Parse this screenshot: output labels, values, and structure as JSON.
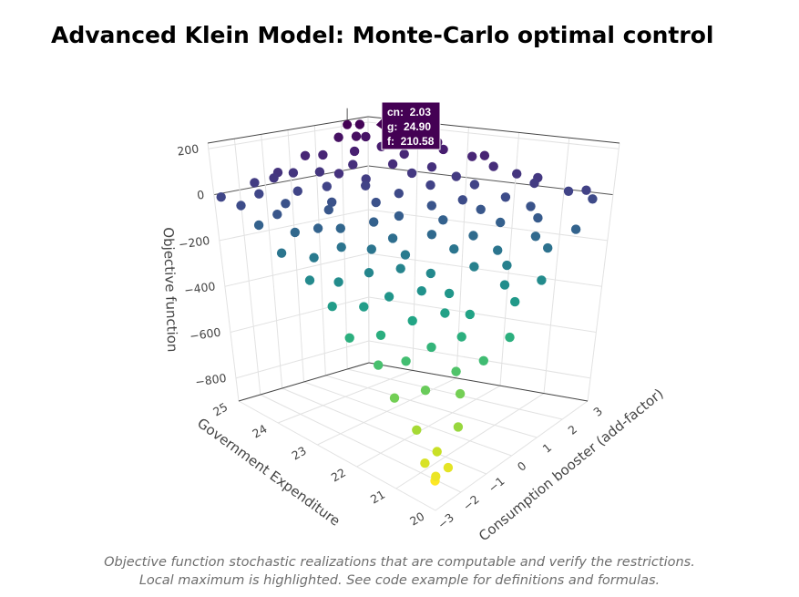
{
  "title": "Advanced Klein Model: Monte-Carlo optimal control",
  "caption": {
    "line1": "Objective function stochastic realizations that are computable and verify the restrictions.",
    "line2": "Local maximum is highlighted. See code example for definitions and formulas."
  },
  "chart_data": {
    "type": "scatter3d",
    "title": "Advanced Klein Model: Monte-Carlo optimal control",
    "axes": {
      "x": {
        "label": "Government Expenditure",
        "range": [
          20,
          25
        ],
        "ticks": [
          20,
          21,
          22,
          23,
          24,
          25
        ],
        "key": "g"
      },
      "y": {
        "label": "Consumption booster (add-factor)",
        "range": [
          -3,
          3
        ],
        "ticks": [
          -3,
          -2,
          -1,
          0,
          1,
          2,
          3
        ],
        "key": "cn"
      },
      "z": {
        "label": "Objective function",
        "range": [
          -900,
          225
        ],
        "ticks": [
          -800,
          -600,
          -400,
          -200,
          0,
          200
        ],
        "key": "f"
      }
    },
    "colorscale": "viridis",
    "colorscale_reversed": true,
    "grid": true,
    "highlight": {
      "g": 24.9,
      "cn": 2.03,
      "f": 210.58,
      "tooltip": [
        "cn:  2.03",
        "g:  24.90",
        "f:  210.58"
      ],
      "color": "#440154"
    },
    "points_columns": [
      "g",
      "cn",
      "f"
    ],
    "points": [
      [
        24.9,
        2.5,
        202
      ],
      [
        24.65,
        2.25,
        158
      ],
      [
        24.85,
        1.6,
        163
      ],
      [
        24.75,
        0.8,
        104
      ],
      [
        24.95,
        0.5,
        101
      ],
      [
        24.7,
        -0.45,
        52
      ],
      [
        24.8,
        -0.85,
        59
      ],
      [
        24.92,
        -1.55,
        25
      ],
      [
        24.68,
        -1.85,
        -9
      ],
      [
        24.88,
        -2.95,
        -7
      ],
      [
        24.35,
        2.8,
        171
      ],
      [
        24.2,
        2.0,
        130
      ],
      [
        24.4,
        1.35,
        118
      ],
      [
        24.25,
        1.0,
        70
      ],
      [
        24.45,
        0.1,
        52
      ],
      [
        24.15,
        -0.2,
        4
      ],
      [
        24.3,
        -1.05,
        -2
      ],
      [
        24.38,
        -1.4,
        -50
      ],
      [
        24.1,
        -2.25,
        -66
      ],
      [
        24.32,
        -2.6,
        -112
      ],
      [
        23.75,
        2.55,
        150
      ],
      [
        23.9,
        2.3,
        98
      ],
      [
        23.65,
        1.4,
        80
      ],
      [
        23.85,
        0.75,
        24
      ],
      [
        23.7,
        0.45,
        6
      ],
      [
        23.95,
        -0.4,
        -52
      ],
      [
        23.8,
        -0.8,
        -70
      ],
      [
        23.6,
        -1.6,
        -120
      ],
      [
        23.88,
        -2.0,
        -138
      ],
      [
        23.72,
        -2.85,
        -195
      ],
      [
        23.3,
        2.65,
        126
      ],
      [
        23.15,
        1.95,
        68
      ],
      [
        23.42,
        1.7,
        40
      ],
      [
        23.2,
        0.8,
        -20
      ],
      [
        23.35,
        0.2,
        -48
      ],
      [
        23.1,
        -0.35,
        -108
      ],
      [
        23.45,
        -1.0,
        -130
      ],
      [
        23.25,
        -1.35,
        -190
      ],
      [
        23.38,
        -2.2,
        -215
      ],
      [
        23.18,
        -2.75,
        -280
      ],
      [
        22.85,
        2.9,
        100
      ],
      [
        22.7,
        2.05,
        36
      ],
      [
        22.9,
        1.45,
        8
      ],
      [
        22.65,
        1.05,
        -62
      ],
      [
        22.95,
        0.35,
        -96
      ],
      [
        22.75,
        -0.25,
        -165
      ],
      [
        22.82,
        -0.95,
        -192
      ],
      [
        22.6,
        -1.45,
        -262
      ],
      [
        22.88,
        -2.15,
        -290
      ],
      [
        22.72,
        -2.7,
        -360
      ],
      [
        22.25,
        2.6,
        78
      ],
      [
        22.4,
        2.2,
        5
      ],
      [
        22.15,
        1.3,
        -30
      ],
      [
        22.35,
        0.95,
        -110
      ],
      [
        22.2,
        0.25,
        -145
      ],
      [
        22.45,
        -0.3,
        -220
      ],
      [
        22.3,
        -0.75,
        -255
      ],
      [
        22.1,
        -1.55,
        -330
      ],
      [
        22.38,
        -2.05,
        -365
      ],
      [
        22.22,
        -2.9,
        -445
      ],
      [
        21.85,
        2.75,
        52
      ],
      [
        21.7,
        2.1,
        -28
      ],
      [
        21.9,
        1.55,
        -70
      ],
      [
        21.65,
        0.85,
        -150
      ],
      [
        21.8,
        0.4,
        -195
      ],
      [
        21.95,
        -0.2,
        -278
      ],
      [
        21.75,
        -0.9,
        -315
      ],
      [
        21.6,
        -1.5,
        -400
      ],
      [
        21.88,
        -2.25,
        -440
      ],
      [
        21.7,
        -2.65,
        -525
      ],
      [
        21.35,
        2.5,
        30
      ],
      [
        21.2,
        2.15,
        -55
      ],
      [
        21.4,
        1.4,
        -105
      ],
      [
        21.15,
        0.9,
        -195
      ],
      [
        21.3,
        0.3,
        -245
      ],
      [
        21.45,
        -0.35,
        -332
      ],
      [
        21.25,
        -0.85,
        -380
      ],
      [
        21.1,
        -1.6,
        -470
      ],
      [
        21.38,
        -2.1,
        -515
      ],
      [
        21.22,
        -2.8,
        -608
      ],
      [
        20.75,
        2.7,
        5
      ],
      [
        20.9,
        1.9,
        -88
      ],
      [
        20.7,
        1.5,
        -145
      ],
      [
        20.85,
        0.75,
        -240
      ],
      [
        20.65,
        0.35,
        -295
      ],
      [
        20.95,
        -0.4,
        -390
      ],
      [
        20.8,
        -0.95,
        -445
      ],
      [
        20.6,
        -1.45,
        -540
      ],
      [
        20.88,
        -2.15,
        -590
      ],
      [
        20.7,
        -2.75,
        -690
      ],
      [
        20.3,
        2.8,
        -20
      ],
      [
        20.15,
        2.0,
        -118
      ],
      [
        20.4,
        1.45,
        -182
      ],
      [
        20.2,
        0.95,
        -285
      ],
      [
        20.35,
        0.25,
        -345
      ],
      [
        20.1,
        -0.3,
        -445
      ],
      [
        20.25,
        -1.0,
        -505
      ],
      [
        20.45,
        -1.5,
        -610
      ],
      [
        20.05,
        -2.2,
        -668
      ],
      [
        20.28,
        -2.6,
        -745
      ],
      [
        20.1,
        -2.9,
        -800
      ],
      [
        20.2,
        -2.75,
        -830
      ],
      [
        20.05,
        -2.5,
        -790
      ],
      [
        20.35,
        -2.95,
        -770
      ],
      [
        24.6,
        1.8,
        170
      ],
      [
        24.0,
        0.0,
        60
      ],
      [
        23.5,
        2.8,
        150
      ],
      [
        22.6,
        2.9,
        110
      ],
      [
        24.7,
        -1.2,
        45
      ],
      [
        24.5,
        -2.9,
        -30
      ],
      [
        21.5,
        2.9,
        40
      ],
      [
        20.5,
        2.9,
        10
      ]
    ]
  }
}
